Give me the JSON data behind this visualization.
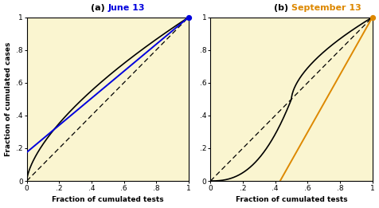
{
  "fig_background": "#ffffff",
  "plot_background": "#faf5d0",
  "title_a_plain": "(a) ",
  "title_a_colored": "June 13",
  "title_b_plain": "(b) ",
  "title_b_colored": "September 13",
  "color_a": "#0000dd",
  "color_b": "#dd8800",
  "xlabel": "Fraction of cumulated tests",
  "ylabel": "Fraction of cumulated cases",
  "yticks": [
    0,
    0.2,
    0.4,
    0.6,
    0.8,
    1.0
  ],
  "xticks": [
    0,
    0.2,
    0.4,
    0.6,
    0.8,
    1.0
  ],
  "yticklabels": [
    "0",
    ".2",
    ".4",
    ".6",
    ".8",
    "1"
  ],
  "xticklabels": [
    "0",
    ".2",
    ".4",
    ".6",
    ".8",
    "1"
  ],
  "june_line_x": [
    0.0,
    1.0
  ],
  "june_line_y": [
    0.175,
    1.0
  ],
  "sep_line_x": [
    0.43,
    1.0
  ],
  "sep_line_y": [
    0.0,
    1.0
  ],
  "title_fontsize": 8,
  "label_fontsize": 6.5,
  "tick_fontsize": 6.5
}
